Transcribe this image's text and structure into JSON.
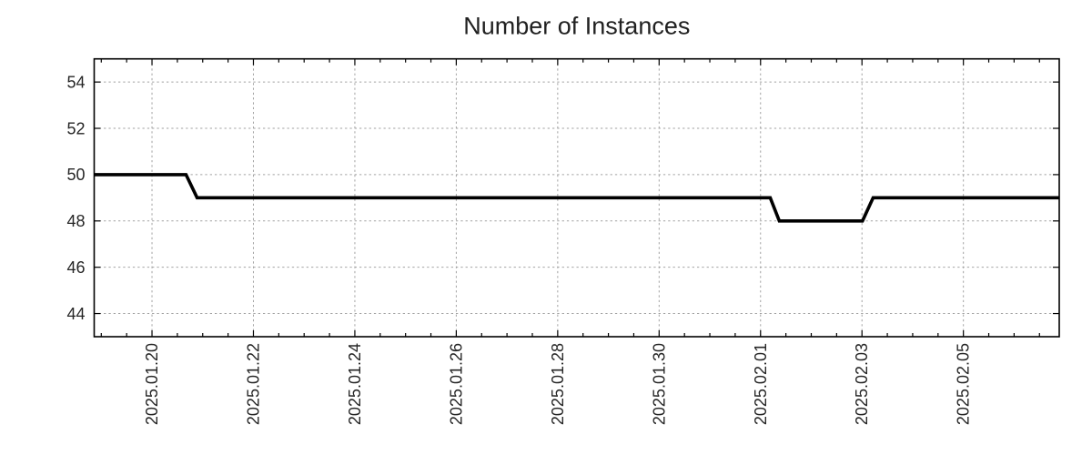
{
  "chart_data": {
    "type": "line",
    "title": "Number of Instances",
    "xlabel": "",
    "ylabel": "",
    "grid": true,
    "legend": false,
    "x_axis": {
      "kind": "time",
      "unit_note": "x positions are days relative to 2025-01-20 00:00",
      "range": [
        -1.14,
        17.89
      ],
      "minor_tick_step": 0.5,
      "tick_label_rotation_deg": 90,
      "major_ticks": [
        {
          "pos": 0,
          "label": "2025.01.20"
        },
        {
          "pos": 2,
          "label": "2025.01.22"
        },
        {
          "pos": 4,
          "label": "2025.01.24"
        },
        {
          "pos": 6,
          "label": "2025.01.26"
        },
        {
          "pos": 8,
          "label": "2025.01.28"
        },
        {
          "pos": 10,
          "label": "2025.01.30"
        },
        {
          "pos": 12,
          "label": "2025.02.01"
        },
        {
          "pos": 14,
          "label": "2025.02.03"
        },
        {
          "pos": 16,
          "label": "2025.02.05"
        }
      ]
    },
    "y_axis": {
      "range": [
        43,
        55
      ],
      "ticks": [
        44,
        46,
        48,
        50,
        52,
        54
      ]
    },
    "series": [
      {
        "name": "Number of Instances",
        "color": "#000000",
        "points": [
          [
            -1.14,
            50
          ],
          [
            0.67,
            50
          ],
          [
            0.89,
            49
          ],
          [
            12.19,
            49
          ],
          [
            12.37,
            48
          ],
          [
            14.01,
            48
          ],
          [
            14.22,
            49
          ],
          [
            17.89,
            49
          ]
        ]
      }
    ]
  },
  "colors": {
    "line": "#000000",
    "grid": "#a2a2a2",
    "axis": "#000000",
    "text": "#262626",
    "background": "#ffffff"
  }
}
